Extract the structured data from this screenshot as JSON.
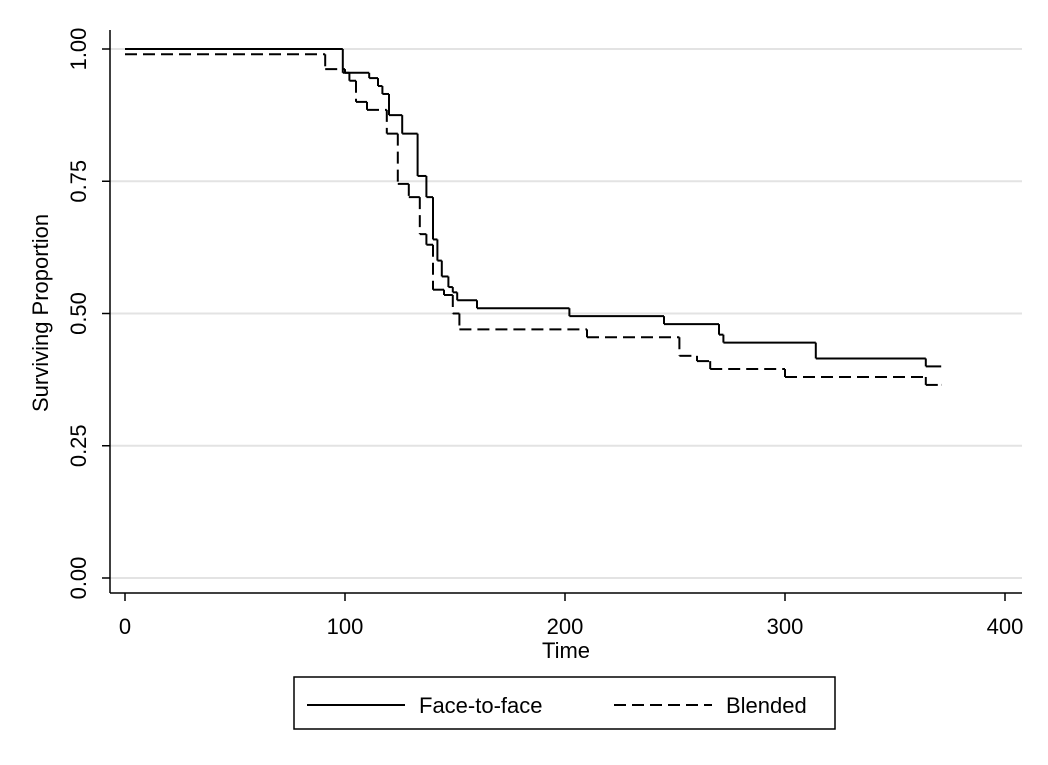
{
  "chart_data": {
    "type": "step",
    "xlabel": "Time",
    "ylabel": "Surviving Proportion",
    "xlim": [
      0,
      400
    ],
    "ylim": [
      0,
      1
    ],
    "xticks": [
      0,
      100,
      200,
      300,
      400
    ],
    "yticks": [
      {
        "value": 0,
        "label": "0.00"
      },
      {
        "value": 0.25,
        "label": "0.25"
      },
      {
        "value": 0.5,
        "label": "0.50"
      },
      {
        "value": 0.75,
        "label": "0.75"
      },
      {
        "value": 1,
        "label": "1.00"
      }
    ],
    "grid": true,
    "legend": "bottom",
    "series": [
      {
        "name": "Face-to-face",
        "color": "#000000",
        "dash": "solid",
        "x": [
          0,
          99,
          111,
          115,
          117,
          120,
          126,
          133,
          137,
          140,
          142,
          144,
          147,
          149,
          151,
          160,
          202,
          245,
          270,
          272,
          314,
          364,
          371
        ],
        "values": [
          1.0,
          0.955,
          0.945,
          0.93,
          0.915,
          0.875,
          0.84,
          0.76,
          0.72,
          0.64,
          0.6,
          0.57,
          0.55,
          0.54,
          0.525,
          0.51,
          0.495,
          0.48,
          0.46,
          0.445,
          0.415,
          0.4,
          0.4
        ]
      },
      {
        "name": "Blended",
        "color": "#000000",
        "dash": "dashed",
        "x": [
          0,
          91,
          100,
          102,
          105,
          110,
          119,
          124,
          129,
          134,
          137,
          140,
          145,
          149,
          152,
          210,
          252,
          260,
          266,
          300,
          364,
          371
        ],
        "values": [
          0.99,
          0.962,
          0.955,
          0.94,
          0.9,
          0.885,
          0.84,
          0.745,
          0.72,
          0.65,
          0.63,
          0.545,
          0.535,
          0.5,
          0.47,
          0.455,
          0.42,
          0.41,
          0.395,
          0.38,
          0.365,
          0.365
        ]
      }
    ]
  }
}
